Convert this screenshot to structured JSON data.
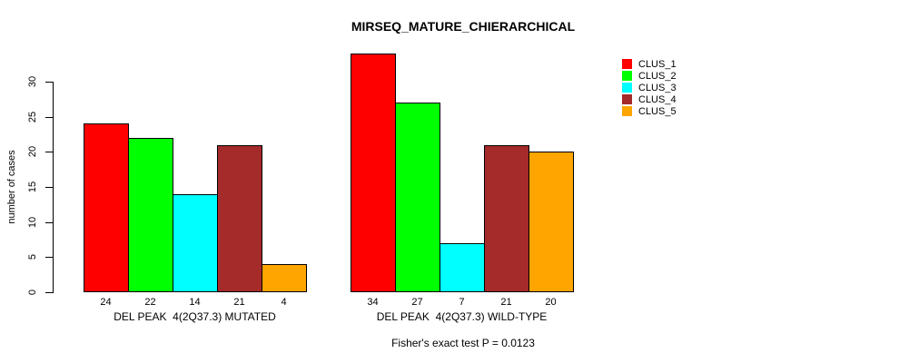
{
  "title": "MIRSEQ_MATURE_CHIERARCHICAL",
  "footnote": "Fisher's exact test P = 0.0123",
  "chart_data": {
    "type": "bar",
    "title": "MIRSEQ_MATURE_CHIERARCHICAL",
    "xlabel": "",
    "ylabel": "number of cases",
    "yticks": [
      0,
      5,
      10,
      15,
      20,
      25,
      30
    ],
    "ylim": [
      0,
      34
    ],
    "grid": false,
    "legend_position": "top-right",
    "legend": [
      "CLUS_1",
      "CLUS_2",
      "CLUS_3",
      "CLUS_4",
      "CLUS_5"
    ],
    "colors": [
      "#ff0000",
      "#00ff00",
      "#00ffff",
      "#a52a2a",
      "#ffa500"
    ],
    "groups": [
      {
        "label": "DEL PEAK  4(2Q37.3) MUTATED",
        "values": [
          24,
          22,
          14,
          21,
          4
        ]
      },
      {
        "label": "DEL PEAK  4(2Q37.3) WILD-TYPE",
        "values": [
          34,
          27,
          7,
          21,
          20
        ]
      }
    ],
    "annotation": "Fisher's exact test P = 0.0123"
  }
}
